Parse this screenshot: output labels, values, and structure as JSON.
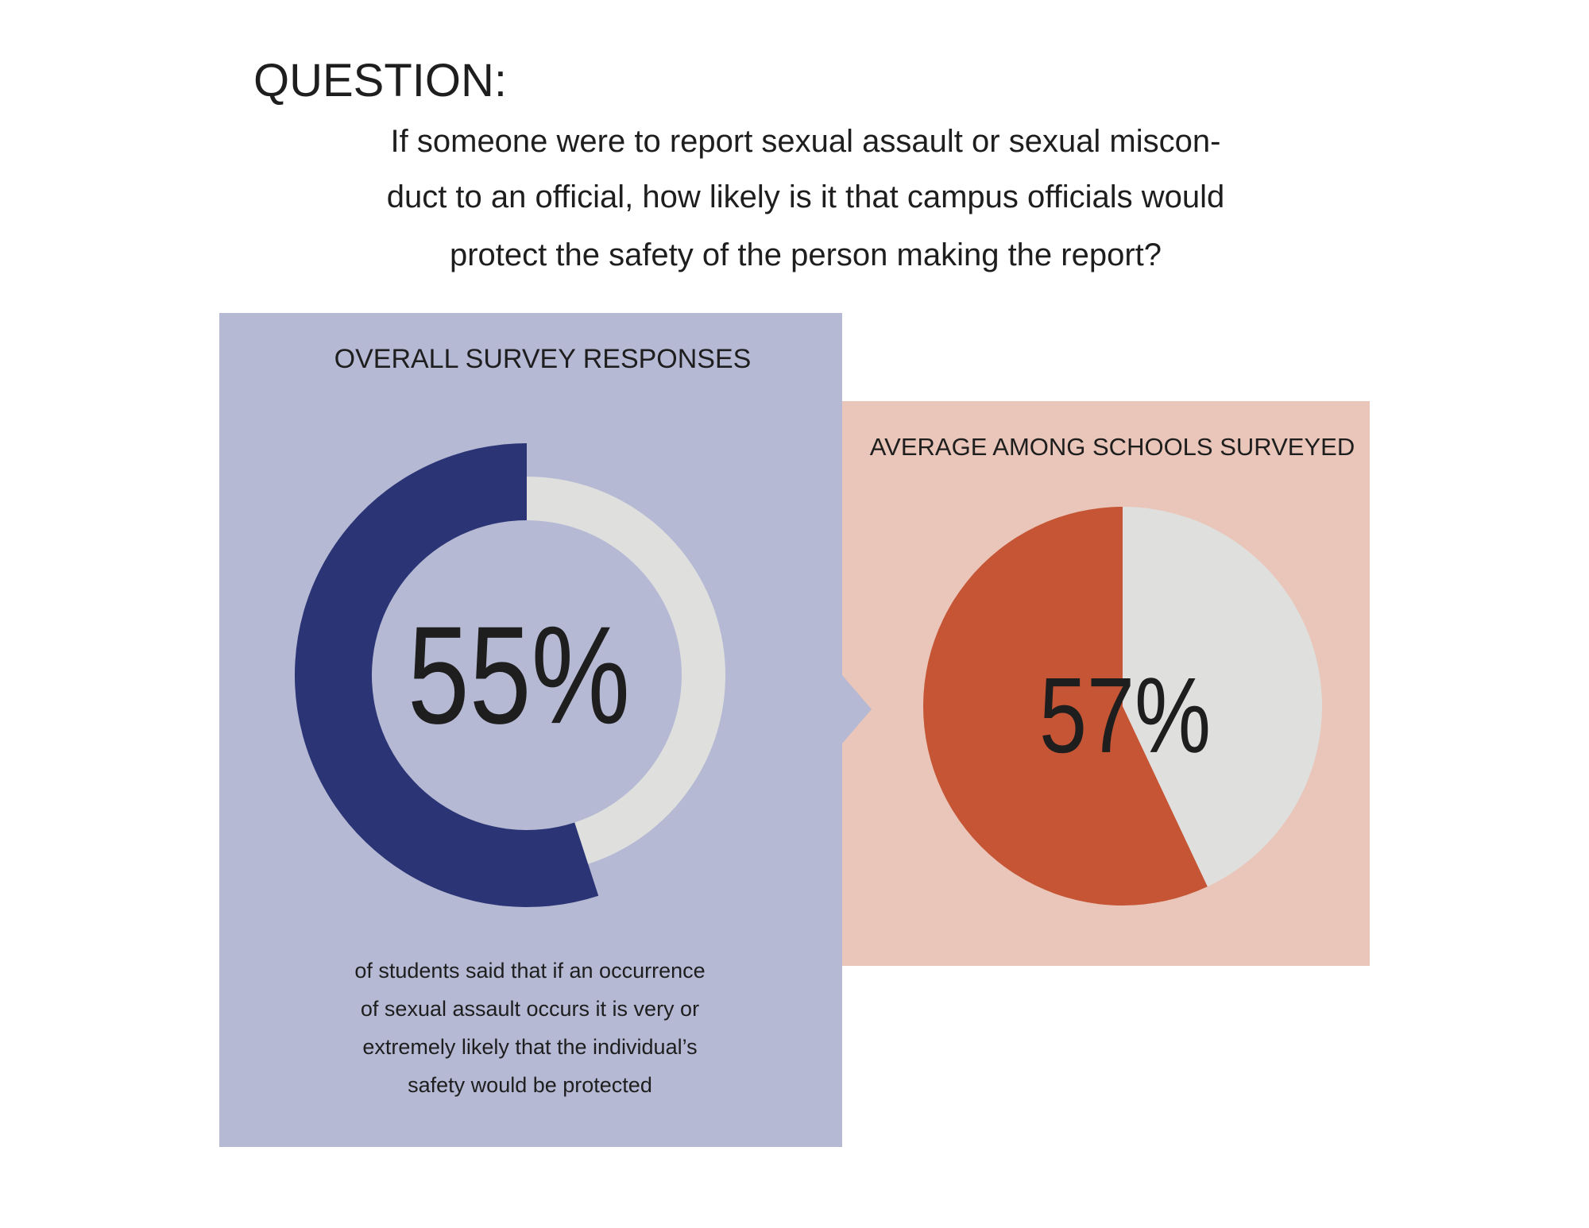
{
  "header": {
    "label": "QUESTION:",
    "question_lines": [
      "If someone were to report sexual assault or sexual miscon-",
      "duct to an official, how likely is it that campus officials would",
      "protect the safety of the person making the report?"
    ]
  },
  "chart_data": [
    {
      "type": "donut",
      "title": "OVERALL SURVEY RESPONSES",
      "values": [
        55,
        45
      ],
      "value_labels": [
        "55%",
        null
      ],
      "colors": [
        "#2b3475",
        "#dfe0de"
      ],
      "caption": [
        "of students said that if an occurrence",
        "of sexual assault occurs it is very or",
        "extremely likely that the individual’s",
        "safety would be protected"
      ]
    },
    {
      "type": "pie",
      "title": "AVERAGE AMONG SCHOOLS SURVEYED",
      "values": [
        57,
        43
      ],
      "value_labels": [
        "57%",
        null
      ],
      "colors": [
        "#c55535",
        "#dfe0de"
      ]
    }
  ]
}
